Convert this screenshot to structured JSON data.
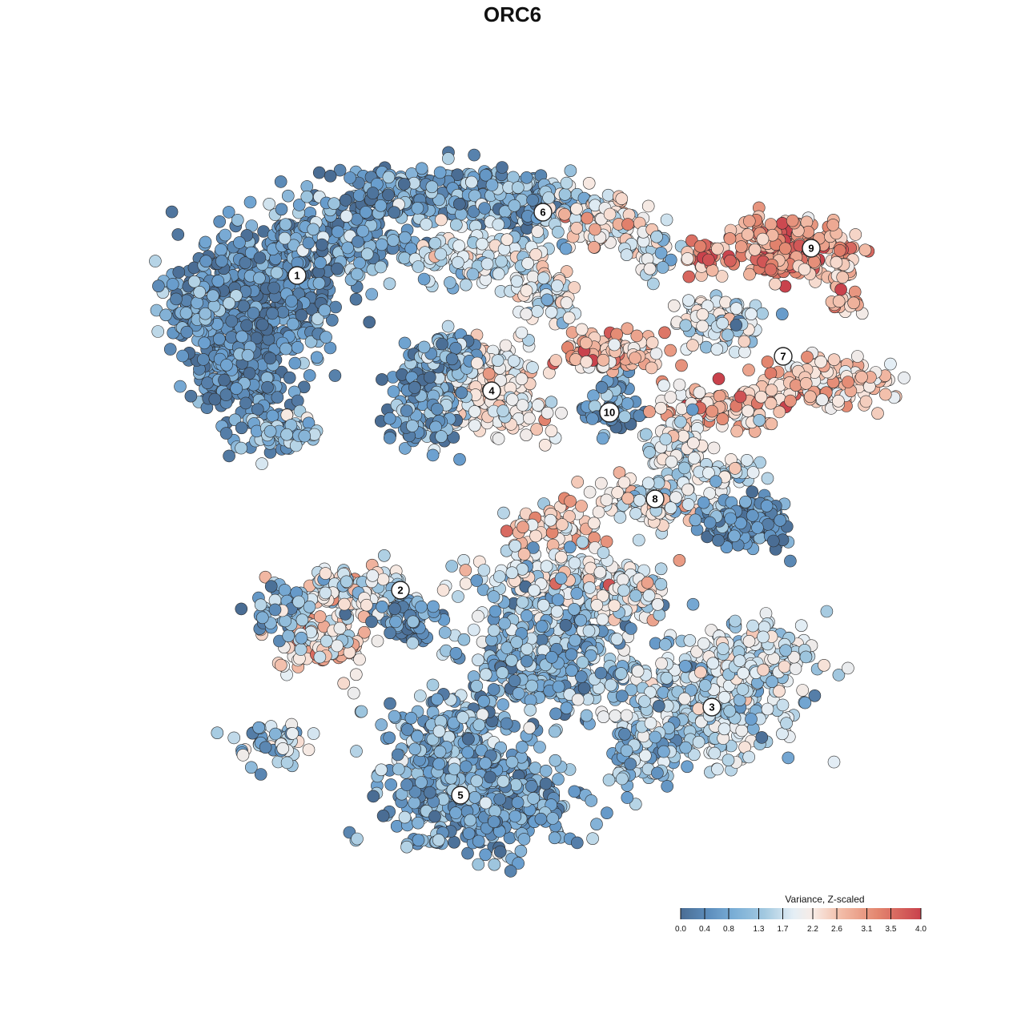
{
  "chart_data": {
    "type": "scatter",
    "title": "ORC6",
    "colorbar": {
      "title": "Variance, Z-scaled",
      "ticks": [
        "0.0",
        "0.4",
        "0.8",
        "1.3",
        "1.7",
        "2.2",
        "2.6",
        "3.1",
        "3.5",
        "4.0"
      ],
      "tick_values": [
        0.0,
        0.4,
        0.8,
        1.3,
        1.7,
        2.2,
        2.6,
        3.1,
        3.5,
        4.0
      ],
      "range": [
        0.0,
        4.0
      ],
      "palette": [
        "#4a6d94",
        "#6a9fcf",
        "#a3c9e0",
        "#e4eef5",
        "#f8e8e0",
        "#f2bba6",
        "#e3866f",
        "#c9424c"
      ],
      "placement": "bottom-right"
    },
    "clusters": [
      {
        "label": "1",
        "mean_value": 0.5
      },
      {
        "label": "2",
        "mean_value": 1.8
      },
      {
        "label": "3",
        "mean_value": 1.3
      },
      {
        "label": "4",
        "mean_value": 1.9
      },
      {
        "label": "5",
        "mean_value": 0.6
      },
      {
        "label": "6",
        "mean_value": 0.9
      },
      {
        "label": "7",
        "mean_value": 2.7
      },
      {
        "label": "8",
        "mean_value": 1.7
      },
      {
        "label": "9",
        "mean_value": 3.5
      },
      {
        "label": "10",
        "mean_value": 0.8
      }
    ],
    "axes": {
      "x_visible": false,
      "y_visible": false
    },
    "grid": false,
    "legend": "bottom-right"
  },
  "colors": {
    "point_stroke": "#2b2b2b",
    "label_fill": "#ffffff"
  }
}
